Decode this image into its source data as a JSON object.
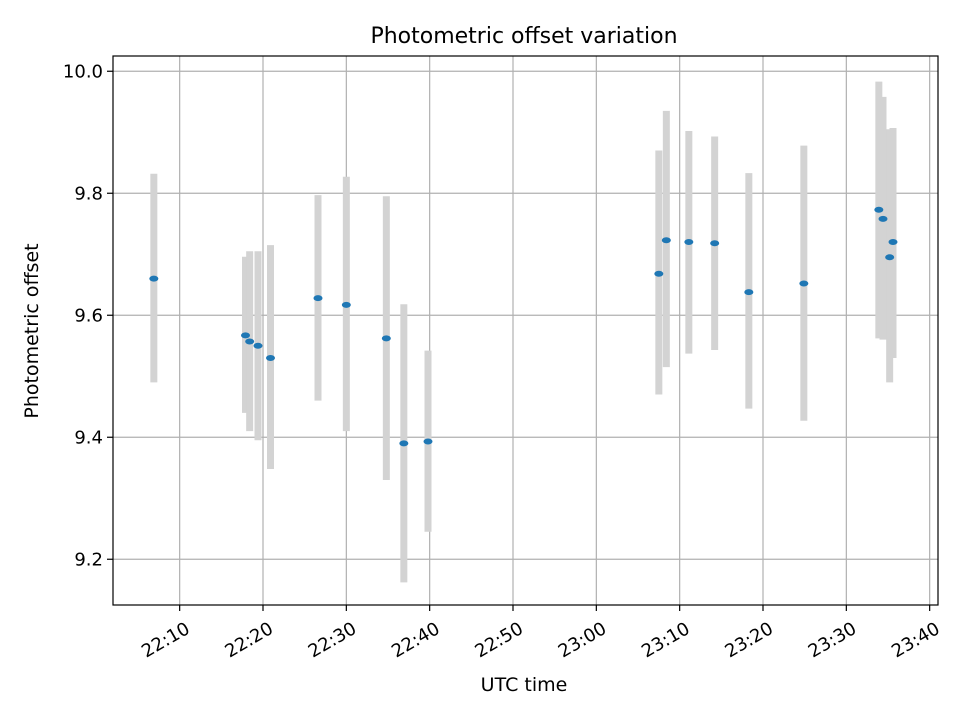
{
  "chart_data": {
    "type": "scatter",
    "title": "Photometric offset variation",
    "xlabel": "UTC time",
    "ylabel": "Photometric offset",
    "xlim": [
      "22:02:00",
      "23:41:00"
    ],
    "ylim": [
      9.125,
      10.025
    ],
    "grid": true,
    "x_ticks": [
      "22:10",
      "22:20",
      "22:30",
      "22:40",
      "22:50",
      "23:00",
      "23:10",
      "23:20",
      "23:30",
      "23:40"
    ],
    "y_ticks": [
      9.2,
      9.4,
      9.6,
      9.8,
      10.0
    ],
    "y_tick_labels": [
      "9.2",
      "9.4",
      "9.6",
      "9.8",
      "10.0"
    ],
    "colors": {
      "point": "#1f77b4",
      "errorbar": "#d3d3d3",
      "grid": "#b0b0b0"
    },
    "series": [
      {
        "x": [
          "22:06:54",
          "22:17:54",
          "22:18:24",
          "22:19:24",
          "22:20:54",
          "22:26:36",
          "22:30:00",
          "22:34:48",
          "22:36:54",
          "22:39:48",
          "23:07:30",
          "23:08:24",
          "23:11:06",
          "23:14:12",
          "23:18:18",
          "23:24:54",
          "23:33:54",
          "23:34:24",
          "23:35:12",
          "23:35:36"
        ],
        "y": [
          9.66,
          9.567,
          9.557,
          9.55,
          9.53,
          9.628,
          9.617,
          9.562,
          9.39,
          9.393,
          9.668,
          9.723,
          9.72,
          9.718,
          9.638,
          9.652,
          9.773,
          9.758,
          9.695,
          9.72
        ],
        "y_low": [
          9.49,
          9.44,
          9.41,
          9.395,
          9.348,
          9.46,
          9.41,
          9.33,
          9.162,
          9.245,
          9.47,
          9.515,
          9.537,
          9.543,
          9.447,
          9.427,
          9.562,
          9.56,
          9.49,
          9.53
        ],
        "y_high": [
          9.832,
          9.696,
          9.705,
          9.705,
          9.715,
          9.797,
          9.827,
          9.795,
          9.618,
          9.542,
          9.87,
          9.935,
          9.902,
          9.893,
          9.833,
          9.878,
          9.983,
          9.958,
          9.905,
          9.907
        ]
      }
    ]
  }
}
